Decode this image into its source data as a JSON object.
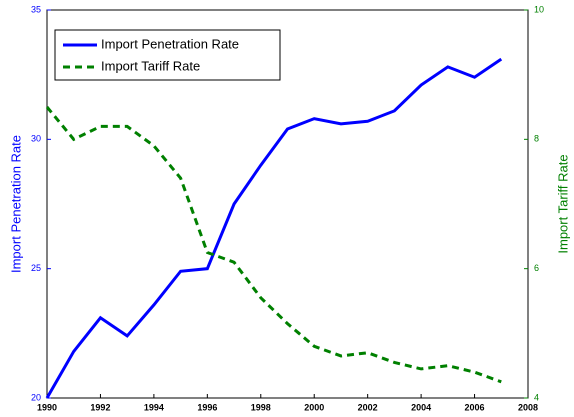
{
  "chart_data": {
    "type": "line",
    "x": [
      1990,
      1991,
      1992,
      1993,
      1994,
      1995,
      1996,
      1997,
      1998,
      1999,
      2000,
      2001,
      2002,
      2003,
      2004,
      2005,
      2006,
      2007
    ],
    "xlim": [
      1990,
      2008
    ],
    "xticks": [
      1990,
      1992,
      1994,
      1996,
      1998,
      2000,
      2002,
      2004,
      2006,
      2008
    ],
    "ylabel": "Import Penetration Rate",
    "y2label": "Import Tariff Rate",
    "ylim": [
      20,
      35
    ],
    "yticks": [
      20,
      25,
      30,
      35
    ],
    "y2lim": [
      4,
      10
    ],
    "y2ticks": [
      4,
      6,
      8,
      10
    ],
    "legend": "upper left",
    "series": [
      {
        "name": "Import Penetration Rate",
        "color": "#0000ff",
        "dash": "solid",
        "values": [
          20.0,
          21.8,
          23.1,
          22.4,
          23.6,
          24.9,
          25.0,
          27.5,
          29.0,
          30.4,
          30.8,
          30.6,
          30.7,
          31.1,
          32.1,
          32.8,
          32.4,
          33.1
        ]
      },
      {
        "name": "Import Tariff Rate",
        "color": "#008000",
        "dash": "dashed",
        "axis": "y2",
        "values": [
          8.5,
          8.0,
          8.2,
          8.2,
          7.9,
          7.4,
          6.25,
          6.1,
          5.55,
          5.15,
          4.8,
          4.65,
          4.7,
          4.55,
          4.45,
          4.5,
          4.4,
          4.25
        ]
      }
    ]
  }
}
